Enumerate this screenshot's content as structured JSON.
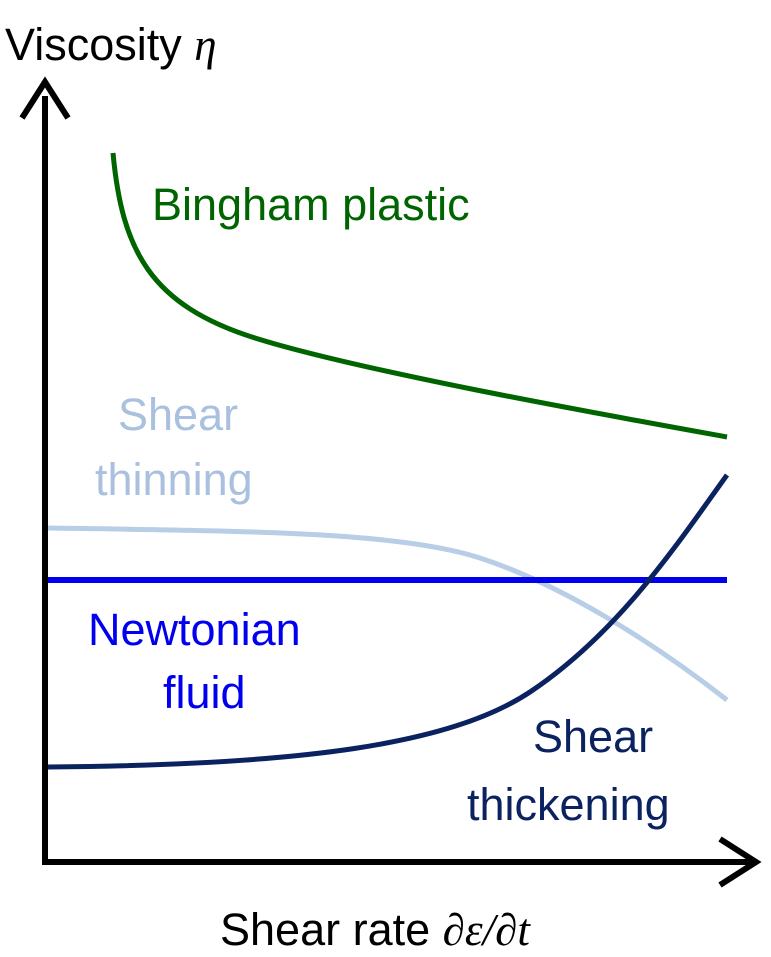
{
  "axes": {
    "y_label": "Viscosity",
    "y_symbol": "η",
    "x_label": "Shear rate",
    "x_symbol": "∂ε/∂t"
  },
  "curves": [
    {
      "lines": [
        "Bingham plastic"
      ]
    },
    {
      "lines": [
        "Shear",
        "thinning"
      ]
    },
    {
      "lines": [
        "Newtonian",
        "fluid"
      ]
    },
    {
      "lines": [
        "Shear",
        "thickening"
      ]
    }
  ]
}
